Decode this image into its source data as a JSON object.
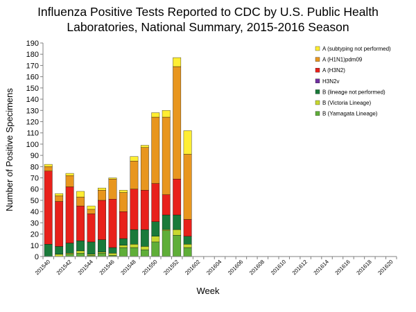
{
  "chart_data": {
    "type": "bar",
    "stacked": true,
    "title_lines": [
      "Influenza Positive Tests Reported to CDC by U.S. Public Health",
      "Laboratories, National Summary, 2015-2016 Season"
    ],
    "xlabel": "Week",
    "ylabel": "Number of Positive  Specimens",
    "ylim": [
      0,
      190
    ],
    "yticks": [
      0,
      10,
      20,
      30,
      40,
      50,
      60,
      70,
      80,
      90,
      100,
      110,
      120,
      130,
      140,
      150,
      160,
      170,
      180,
      190
    ],
    "grid": false,
    "legend_position": "top-right",
    "categories": [
      "201540",
      "201541",
      "201542",
      "201543",
      "201544",
      "201545",
      "201546",
      "201547",
      "201548",
      "201549",
      "201550",
      "201551",
      "201552",
      "201601",
      "201602",
      "201603",
      "201604",
      "201605",
      "201606",
      "201607",
      "201608",
      "201609",
      "201610",
      "201611",
      "201612",
      "201613",
      "201614",
      "201615",
      "201616",
      "201617",
      "201618",
      "201619",
      "201620"
    ],
    "tick_labels": [
      "201540",
      "201542",
      "201544",
      "201546",
      "201548",
      "201550",
      "201552",
      "201602",
      "201604",
      "201606",
      "201608",
      "201610",
      "201612",
      "201614",
      "201616",
      "201618",
      "201620"
    ],
    "series": [
      {
        "name": "B (Yamagata Lineage)",
        "color": "#5fae38",
        "values": [
          0,
          0,
          2,
          3,
          1,
          3,
          1,
          8,
          8,
          6,
          13,
          23,
          19,
          8,
          null,
          null,
          null,
          null,
          null,
          null,
          null,
          null,
          null,
          null,
          null,
          null,
          null,
          null,
          null,
          null,
          null,
          null,
          null
        ]
      },
      {
        "name": "B (Victoria Lineage)",
        "color": "#c8d830",
        "values": [
          0,
          2,
          1,
          2,
          1,
          1,
          2,
          2,
          3,
          3,
          5,
          1,
          5,
          3,
          null,
          null,
          null,
          null,
          null,
          null,
          null,
          null,
          null,
          null,
          null,
          null,
          null,
          null,
          null,
          null,
          null,
          null,
          null
        ]
      },
      {
        "name": "B (lineage not performed)",
        "color": "#1a7a3a",
        "values": [
          11,
          7,
          9,
          9,
          11,
          11,
          5,
          6,
          13,
          15,
          13,
          13,
          13,
          7,
          null,
          null,
          null,
          null,
          null,
          null,
          null,
          null,
          null,
          null,
          null,
          null,
          null,
          null,
          null,
          null,
          null,
          null,
          null
        ]
      },
      {
        "name": "H3N2v",
        "color": "#7030a0",
        "values": [
          0,
          0,
          0,
          0,
          0,
          0,
          0,
          0,
          0,
          0,
          0,
          0,
          0,
          0,
          null,
          null,
          null,
          null,
          null,
          null,
          null,
          null,
          null,
          null,
          null,
          null,
          null,
          null,
          null,
          null,
          null,
          null,
          null
        ]
      },
      {
        "name": "A (H3N2)",
        "color": "#e8211b",
        "values": [
          65,
          40,
          50,
          31,
          25,
          35,
          43,
          24,
          36,
          35,
          34,
          18,
          32,
          15,
          null,
          null,
          null,
          null,
          null,
          null,
          null,
          null,
          null,
          null,
          null,
          null,
          null,
          null,
          null,
          null,
          null,
          null,
          null
        ]
      },
      {
        "name": "A (H1N1)pdm09",
        "color": "#e8961e",
        "values": [
          4,
          5,
          10,
          8,
          4,
          9,
          18,
          17,
          25,
          38,
          59,
          69,
          100,
          58,
          null,
          null,
          null,
          null,
          null,
          null,
          null,
          null,
          null,
          null,
          null,
          null,
          null,
          null,
          null,
          null,
          null,
          null,
          null
        ]
      },
      {
        "name": "A (subtyping not performed)",
        "color": "#ffee33",
        "values": [
          2,
          2,
          2,
          5,
          3,
          2,
          1,
          2,
          4,
          2,
          4,
          6,
          8,
          21,
          null,
          null,
          null,
          null,
          null,
          null,
          null,
          null,
          null,
          null,
          null,
          null,
          null,
          null,
          null,
          null,
          null,
          null,
          null
        ]
      }
    ]
  }
}
